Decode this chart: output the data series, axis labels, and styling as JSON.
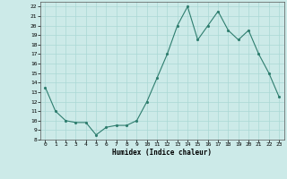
{
  "x": [
    0,
    1,
    2,
    3,
    4,
    5,
    6,
    7,
    8,
    9,
    10,
    11,
    12,
    13,
    14,
    15,
    16,
    17,
    18,
    19,
    20,
    21,
    22,
    23
  ],
  "y": [
    13.5,
    11.0,
    10.0,
    9.8,
    9.8,
    8.5,
    9.3,
    9.5,
    9.5,
    10.0,
    12.0,
    14.5,
    17.0,
    20.0,
    22.0,
    18.5,
    20.0,
    21.5,
    19.5,
    18.5,
    19.5,
    17.0,
    15.0,
    12.5
  ],
  "xlabel": "Humidex (Indice chaleur)",
  "ylim": [
    8,
    22.5
  ],
  "xlim": [
    -0.5,
    23.5
  ],
  "yticks": [
    8,
    9,
    10,
    11,
    12,
    13,
    14,
    15,
    16,
    17,
    18,
    19,
    20,
    21,
    22
  ],
  "xticks": [
    0,
    1,
    2,
    3,
    4,
    5,
    6,
    7,
    8,
    9,
    10,
    11,
    12,
    13,
    14,
    15,
    16,
    17,
    18,
    19,
    20,
    21,
    22,
    23
  ],
  "line_color": "#2e7d6e",
  "marker_color": "#2e7d6e",
  "bg_color": "#cceae8",
  "grid_color": "#aad8d4",
  "title": ""
}
